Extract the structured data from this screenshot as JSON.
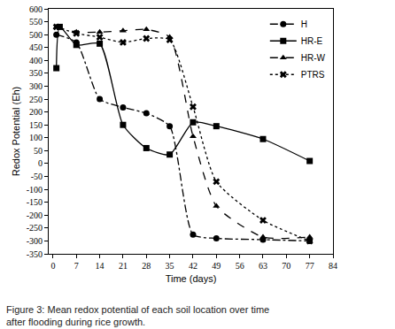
{
  "chart_data": {
    "type": "line",
    "title": "Figure 3: Mean redox potential of each soil location over time after flooding during rice growth.",
    "x_label": "Time (days)",
    "y_label": "Redox Potential (Eh)",
    "xlim": [
      -1.3,
      84
    ],
    "xticks": [
      0,
      7,
      14,
      21,
      28,
      35,
      42,
      49,
      56,
      63,
      70,
      77,
      84
    ],
    "ylim": [
      -350,
      600
    ],
    "yticks": [
      -350,
      -300,
      -250,
      -200,
      -150,
      -100,
      -50,
      0,
      50,
      100,
      150,
      200,
      250,
      300,
      350,
      400,
      450,
      500,
      550,
      600
    ],
    "grid": false,
    "legend": "top-right",
    "series": [
      {
        "name": "H",
        "color": "#000000",
        "marker": "circle",
        "line_style": "dashdot",
        "x": [
          1,
          7,
          14,
          21,
          28,
          35,
          42,
          49,
          63,
          77
        ],
        "values": [
          500,
          470,
          250,
          218,
          195,
          145,
          -275,
          -290,
          -295,
          -300
        ]
      },
      {
        "name": "HR-E",
        "color": "#000000",
        "marker": "square",
        "line_style": "solid",
        "x": [
          1,
          2,
          7,
          14,
          21,
          28,
          35,
          42,
          49,
          63,
          77
        ],
        "values": [
          370,
          530,
          460,
          465,
          150,
          60,
          35,
          160,
          145,
          95,
          10
        ]
      },
      {
        "name": "HR-W",
        "color": "#000000",
        "marker": "triangle-up",
        "line_style": "dash",
        "x": [
          1,
          7,
          14,
          21,
          28,
          35,
          42,
          49,
          63,
          77
        ],
        "values": [
          530,
          510,
          510,
          515,
          520,
          490,
          105,
          -165,
          -285,
          -285
        ]
      },
      {
        "name": "PTRS",
        "color": "#000000",
        "marker": "x",
        "line_style": "dot",
        "x": [
          1,
          7,
          14,
          21,
          28,
          35,
          42,
          49,
          63,
          77
        ],
        "values": [
          530,
          505,
          490,
          470,
          485,
          480,
          220,
          -70,
          -220,
          -300
        ]
      }
    ]
  }
}
